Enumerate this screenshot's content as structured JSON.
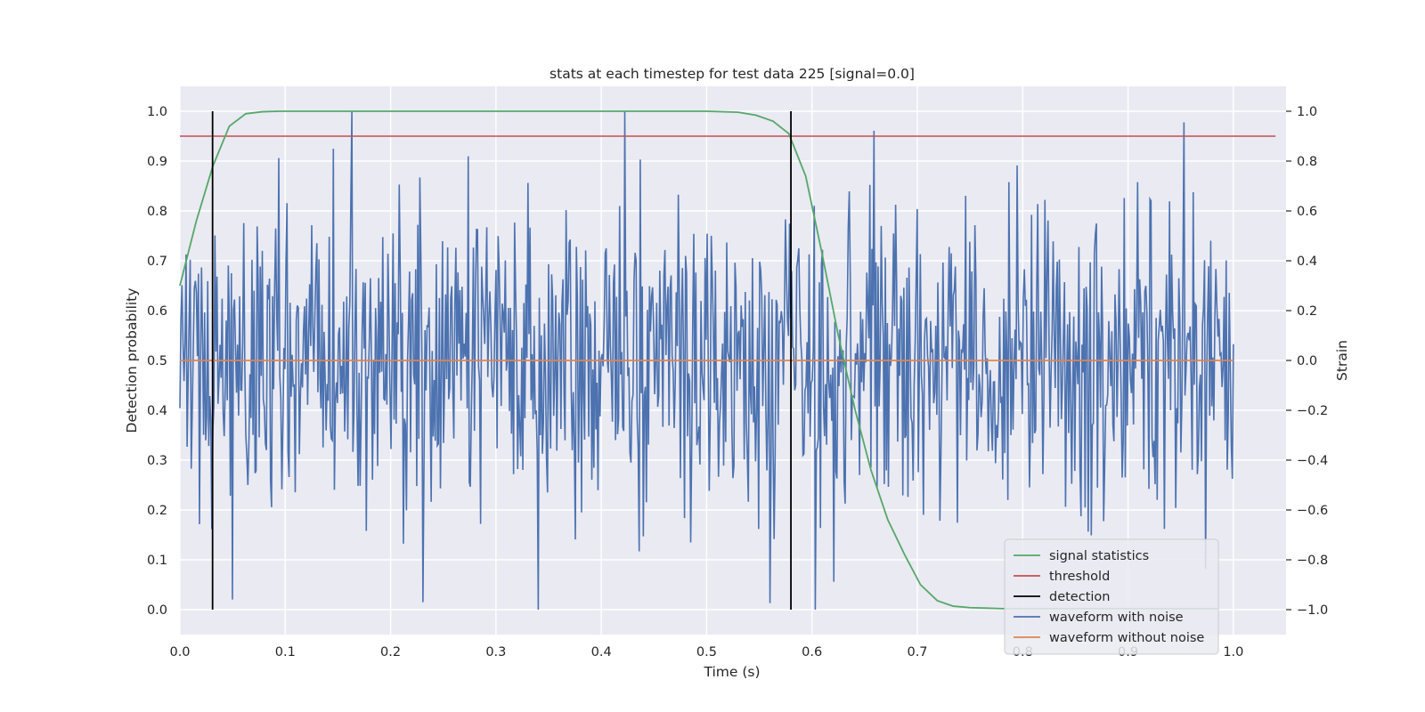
{
  "chart_data": {
    "type": "line",
    "title": "stats at each timestep for test data 225 [signal=0.0]",
    "xlabel": "Time (s)",
    "ylabel_left": "Detection probability",
    "ylabel_right": "Strain",
    "xlim": [
      0.0,
      1.05
    ],
    "ylim_left": [
      -0.05,
      1.05
    ],
    "ylim_right": [
      -1.1,
      1.1
    ],
    "xticks": [
      0.0,
      0.1,
      0.2,
      0.3,
      0.4,
      0.5,
      0.6,
      0.7,
      0.8,
      0.9,
      1.0
    ],
    "xtick_labels": [
      "0.0",
      "0.1",
      "0.2",
      "0.3",
      "0.4",
      "0.5",
      "0.6",
      "0.7",
      "0.8",
      "0.9",
      "1.0"
    ],
    "yticks_left": [
      0.0,
      0.1,
      0.2,
      0.3,
      0.4,
      0.5,
      0.6,
      0.7,
      0.8,
      0.9,
      1.0
    ],
    "ytick_labels_left": [
      "0.0",
      "0.1",
      "0.2",
      "0.3",
      "0.4",
      "0.5",
      "0.6",
      "0.7",
      "0.8",
      "0.9",
      "1.0"
    ],
    "yticks_right": [
      -1.0,
      -0.8,
      -0.6,
      -0.4,
      -0.2,
      0.0,
      0.2,
      0.4,
      0.6,
      0.8,
      1.0
    ],
    "ytick_labels_right": [
      "−1.0",
      "−0.8",
      "−0.6",
      "−0.4",
      "−0.2",
      "0.0",
      "0.2",
      "0.4",
      "0.6",
      "0.8",
      "1.0"
    ],
    "grid": true,
    "legend_position": "lower-right",
    "colors": {
      "background": "#eaeaf2",
      "grid": "#ffffff",
      "signal_statistics": "#55a868",
      "threshold": "#c44e52",
      "detection": "#000000",
      "waveform_with_noise": "#4c72b0",
      "waveform_without_noise": "#dd8452"
    },
    "series": [
      {
        "name": "signal statistics",
        "axis": "left",
        "x": [
          0.0,
          0.0156,
          0.0313,
          0.0469,
          0.0625,
          0.0781,
          0.0938,
          0.1094,
          0.125,
          0.14,
          0.2,
          0.3,
          0.4,
          0.5,
          0.53,
          0.547,
          0.563,
          0.578,
          0.594,
          0.609,
          0.625,
          0.641,
          0.656,
          0.672,
          0.688,
          0.703,
          0.719,
          0.734,
          0.75,
          0.766,
          0.781,
          0.797,
          0.813,
          0.85,
          0.9,
          0.95,
          0.985
        ],
        "y": [
          0.65,
          0.78,
          0.89,
          0.97,
          0.995,
          0.999,
          1.0,
          1.0,
          1.0,
          1.0,
          1.0,
          1.0,
          1.0,
          1.0,
          0.998,
          0.992,
          0.98,
          0.955,
          0.87,
          0.72,
          0.55,
          0.4,
          0.28,
          0.18,
          0.11,
          0.05,
          0.018,
          0.007,
          0.004,
          0.003,
          0.002,
          0.002,
          0.002,
          0.002,
          0.002,
          0.002,
          0.002
        ]
      },
      {
        "name": "threshold",
        "axis": "left",
        "x": [
          0.0,
          1.04
        ],
        "y": [
          0.95,
          0.95
        ]
      },
      {
        "name": "detection",
        "axis": "left",
        "x": [
          0.031,
          0.58
        ],
        "y_range": [
          0.0,
          1.0
        ]
      },
      {
        "name": "waveform with noise",
        "axis": "right",
        "x_range": [
          0.0,
          1.0
        ],
        "n_points": 1024,
        "notes_style": "gaussian noise, std ~0.35, spanning -1.0 to 1.0",
        "y_min": -1.0,
        "y_max": 1.0
      },
      {
        "name": "waveform without noise",
        "axis": "right",
        "x": [
          0.0,
          1.0
        ],
        "y": [
          0.0,
          0.0
        ]
      }
    ],
    "legend": [
      "signal statistics",
      "threshold",
      "detection",
      "waveform with noise",
      "waveform without noise"
    ]
  }
}
